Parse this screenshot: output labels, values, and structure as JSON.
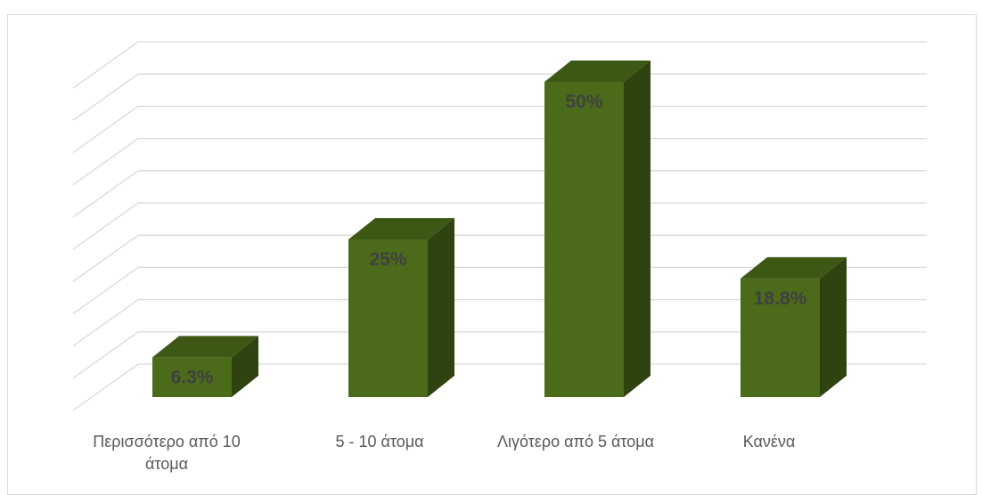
{
  "chart_data": {
    "type": "bar",
    "style": "3d-column",
    "categories": [
      "Περισσότερο από 10 άτομα",
      "5 - 10 άτομα",
      "Λιγότερο από 5 άτομα",
      "Κανένα"
    ],
    "values": [
      6.3,
      25,
      50,
      18.8
    ],
    "data_labels": [
      "6.3%",
      "25%",
      "50%",
      "18.8%"
    ],
    "title": "",
    "xlabel": "",
    "ylabel": "",
    "ylim": [
      0,
      55
    ],
    "grid": true,
    "legend": "none",
    "colors": {
      "bar_front": "#4b6b1a",
      "bar_top": "#3d5815",
      "bar_side": "#2e430f",
      "data_label": "#404040",
      "gridline": "#d9d9d9",
      "category_label": "#595959"
    }
  }
}
